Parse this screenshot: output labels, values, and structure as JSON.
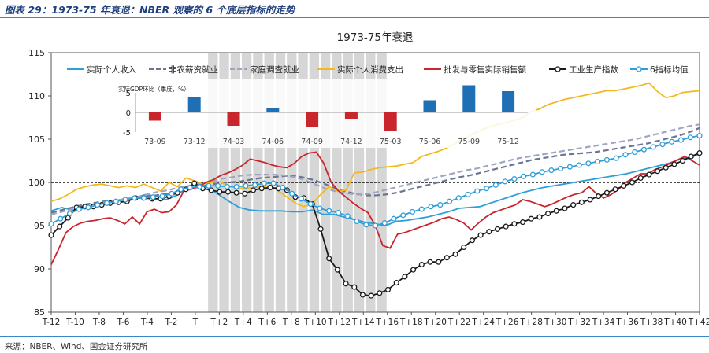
{
  "figure": {
    "caption": "图表 29：1973-75 年衰退：NBER 观察的 6 个底层指标的走势",
    "source": "来源：NBER、Wind、国金证券研究所"
  },
  "chart_data": [
    {
      "type": "line",
      "title": "1973-75年衰退",
      "x_labels": [
        "T-12",
        "T-10",
        "T-8",
        "T-6",
        "T-4",
        "T-2",
        "T",
        "T+2",
        "T+4",
        "T+6",
        "T+8",
        "T+10",
        "T+12",
        "T+14",
        "T+16",
        "T+18",
        "T+20",
        "T+22",
        "T+24",
        "T+26",
        "T+28",
        "T+30",
        "T+32",
        "T+34",
        "T+36",
        "T+38",
        "T+40",
        "T+42"
      ],
      "x_range": [
        -12,
        42
      ],
      "ylim": [
        85,
        115
      ],
      "yticks": [
        85,
        90,
        95,
        100,
        105,
        110,
        115
      ],
      "reference_line": 100,
      "shaded_period": [
        1,
        16
      ],
      "legend_position": "top",
      "series": [
        {
          "name": "实际个人收入",
          "color": "#2f9fd8",
          "style": "solid",
          "marker": "none",
          "values": [
            96.7,
            97.1,
            96.8,
            97.1,
            97.3,
            97.6,
            97.8,
            98.0,
            98.2,
            98.6,
            98.4,
            98.0,
            98.5,
            99.5,
            100.0,
            99.4,
            98.6,
            97.8,
            97.1,
            96.8,
            96.7,
            96.7,
            96.7,
            96.6,
            96.6,
            96.8,
            96.3,
            96.3,
            96.0,
            95.7,
            95.4,
            95.2,
            95.0,
            95.5,
            95.6,
            95.8,
            96.0,
            96.3,
            96.6,
            97.0,
            97.1,
            97.2,
            97.6,
            98.0,
            98.4,
            98.8,
            99.1,
            99.4,
            99.6,
            99.8,
            100.0,
            100.2,
            100.4,
            100.6,
            100.8,
            101.0,
            101.3,
            101.6,
            101.9,
            102.2,
            102.6,
            102.9,
            103.2
          ]
        },
        {
          "name": "非农薪资就业",
          "color": "#6b7591",
          "style": "dashed",
          "marker": "none",
          "values": [
            96.5,
            96.8,
            97.1,
            97.4,
            97.6,
            97.8,
            97.9,
            98.0,
            98.2,
            98.4,
            98.5,
            98.7,
            98.8,
            99.1,
            99.5,
            99.7,
            99.9,
            100.0,
            100.1,
            100.3,
            100.5,
            100.6,
            100.7,
            100.8,
            100.6,
            100.3,
            99.9,
            99.4,
            99.0,
            98.7,
            98.5,
            98.5,
            98.6,
            98.8,
            99.1,
            99.4,
            99.7,
            100.0,
            100.3,
            100.6,
            100.8,
            101.1,
            101.4,
            101.7,
            102.0,
            102.3,
            102.6,
            102.8,
            103.0,
            103.2,
            103.3,
            103.4,
            103.5,
            103.7,
            103.9,
            104.1,
            104.3,
            104.5,
            104.8,
            105.1,
            105.4,
            105.8,
            106.3
          ]
        },
        {
          "name": "家庭调查就业",
          "color": "#9ea4c2",
          "style": "dashed",
          "marker": "none",
          "values": [
            96.3,
            96.6,
            96.9,
            97.2,
            97.4,
            97.7,
            97.9,
            98.1,
            98.3,
            98.6,
            98.9,
            99.1,
            99.4,
            99.6,
            99.9,
            100.1,
            100.4,
            100.6,
            100.8,
            100.9,
            100.9,
            100.9,
            100.8,
            100.6,
            100.2,
            99.7,
            99.2,
            98.9,
            98.7,
            98.6,
            98.7,
            99.0,
            99.3,
            99.6,
            99.9,
            100.2,
            100.5,
            100.8,
            101.1,
            101.4,
            101.6,
            101.9,
            102.2,
            102.5,
            102.8,
            103.0,
            103.2,
            103.4,
            103.6,
            103.8,
            104.0,
            104.2,
            104.4,
            104.6,
            104.8,
            105.0,
            105.3,
            105.6,
            105.9,
            106.2,
            106.5,
            106.7
          ]
        },
        {
          "name": "实际个人消费支出",
          "color": "#f2b81e",
          "style": "solid",
          "marker": "none",
          "values": [
            97.8,
            98.1,
            98.6,
            99.2,
            99.5,
            99.7,
            99.8,
            99.6,
            99.4,
            99.6,
            99.4,
            99.8,
            99.4,
            99.0,
            100.0,
            99.5,
            100.5,
            100.2,
            99.8,
            100.0,
            100.1,
            99.6,
            99.4,
            99.3,
            99.4,
            99.5,
            99.6,
            99.0,
            98.3,
            97.6,
            97.2,
            97.5,
            98.6,
            99.5,
            99.0,
            99.1,
            101.1,
            101.2,
            101.5,
            101.7,
            101.8,
            101.9,
            102.1,
            102.3,
            103.0,
            103.3,
            103.6,
            104.0,
            104.5,
            105.0,
            105.6,
            106.0,
            106.4,
            106.7,
            106.9,
            107.2,
            107.5,
            108.2,
            108.5,
            109.0,
            109.3,
            109.6,
            109.8,
            110.0,
            110.2,
            110.4,
            110.6,
            110.6,
            110.8,
            111.0,
            111.2,
            111.5,
            110.5,
            109.8,
            110.0,
            110.4,
            110.5,
            110.6
          ]
        },
        {
          "name": "批发与零售实际销售额",
          "color": "#c9252c",
          "style": "solid",
          "marker": "none",
          "values": [
            90.5,
            92.3,
            94.2,
            94.9,
            95.3,
            95.5,
            95.6,
            95.8,
            95.9,
            95.6,
            95.2,
            96.0,
            95.2,
            96.6,
            96.9,
            96.5,
            96.6,
            97.4,
            99.0,
            99.2,
            99.5,
            100.0,
            100.3,
            100.8,
            101.1,
            101.5,
            102.0,
            102.7,
            102.5,
            102.3,
            102.0,
            101.8,
            101.7,
            102.2,
            103.0,
            103.4,
            103.5,
            102.2,
            100.0,
            99.0,
            98.3,
            97.6,
            97.0,
            96.5,
            95.0,
            92.7,
            92.4,
            94.0,
            94.2,
            94.5,
            94.8,
            95.1,
            95.4,
            95.8,
            96.0,
            95.7,
            95.3,
            94.5,
            95.3,
            96.0,
            96.5,
            96.8,
            97.1,
            97.4,
            98.0,
            97.8,
            97.5,
            97.2,
            97.5,
            97.9,
            98.3,
            98.6,
            98.8,
            99.5,
            98.7,
            98.2,
            98.6,
            99.2,
            100.0,
            100.5,
            101.0,
            101.0,
            101.5,
            101.8,
            102.2,
            102.6,
            103.0,
            102.5,
            102.0
          ]
        },
        {
          "name": "工业生产指数",
          "color": "#1a1a1a",
          "style": "solid",
          "marker": "open-circle",
          "values": [
            93.9,
            94.9,
            95.9,
            97.1,
            97.2,
            97.2,
            97.4,
            97.6,
            97.7,
            97.8,
            98.2,
            98.2,
            98.1,
            98.1,
            98.4,
            98.8,
            99.2,
            99.9,
            99.3,
            99.1,
            98.9,
            98.9,
            98.8,
            98.7,
            99.1,
            99.3,
            99.4,
            99.3,
            99.1,
            98.3,
            98.2,
            97.5,
            94.6,
            91.2,
            89.9,
            88.3,
            87.9,
            87.0,
            86.9,
            87.2,
            87.6,
            88.4,
            89.1,
            89.9,
            90.5,
            90.8,
            90.8,
            91.3,
            91.7,
            92.5,
            93.3,
            93.9,
            94.3,
            94.6,
            94.9,
            95.2,
            95.4,
            95.8,
            96.0,
            96.4,
            96.7,
            97.0,
            97.4,
            97.7,
            98.0,
            98.4,
            98.8,
            99.2,
            99.6,
            100.0,
            100.5,
            100.9,
            101.3,
            101.7,
            102.1,
            102.5,
            103.0,
            103.4
          ]
        },
        {
          "name": "6指标均值",
          "color": "#2f9fd8",
          "style": "solid",
          "marker": "open-circle",
          "values": [
            95.2,
            95.8,
            96.4,
            96.9,
            97.1,
            97.4,
            97.6,
            97.8,
            98.0,
            98.2,
            98.2,
            98.3,
            98.4,
            98.7,
            99.2,
            99.4,
            99.5,
            99.6,
            99.6,
            99.5,
            99.5,
            99.6,
            99.7,
            99.9,
            99.9,
            99.4,
            98.7,
            98.1,
            97.5,
            97.0,
            96.7,
            96.5,
            96.1,
            95.5,
            95.1,
            95.0,
            95.3,
            95.8,
            96.2,
            96.6,
            96.9,
            97.2,
            97.4,
            97.8,
            98.2,
            98.6,
            99.0,
            99.3,
            99.7,
            100.1,
            100.4,
            100.7,
            100.9,
            101.2,
            101.4,
            101.6,
            101.8,
            102.0,
            102.2,
            102.4,
            102.6,
            102.8,
            103.2,
            103.5,
            103.8,
            104.1,
            104.4,
            104.7,
            104.9,
            105.2,
            105.4
          ]
        }
      ]
    },
    {
      "type": "bar",
      "title": "实际GDP环比（季度，%）",
      "categories": [
        "73-09",
        "73-12",
        "74-03",
        "74-06",
        "74-09",
        "74-12",
        "75-03",
        "75-06",
        "75-09",
        "75-12"
      ],
      "values": [
        -2.1,
        3.8,
        -3.4,
        1.0,
        -3.8,
        -1.6,
        -4.8,
        3.1,
        6.9,
        5.4
      ],
      "ylim": [
        -5,
        5
      ],
      "yticks": [
        -5,
        0,
        5
      ],
      "colors": {
        "positive": "#1f6fb5",
        "negative": "#c9252c"
      }
    }
  ]
}
